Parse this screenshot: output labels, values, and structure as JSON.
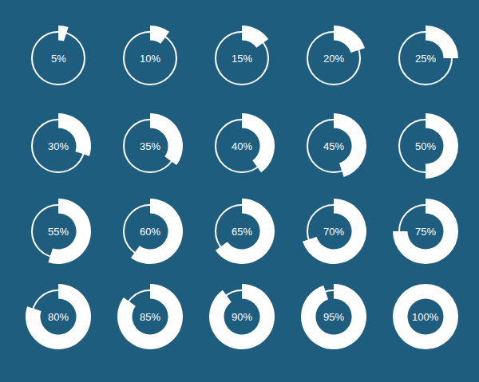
{
  "chart_data": {
    "type": "donut",
    "values": [
      5,
      10,
      15,
      20,
      25,
      30,
      35,
      40,
      45,
      50,
      55,
      60,
      65,
      70,
      75,
      80,
      85,
      90,
      95,
      100
    ],
    "value_labels": [
      "5%",
      "10%",
      "15%",
      "20%",
      "25%",
      "30%",
      "35%",
      "40%",
      "45%",
      "50%",
      "55%",
      "60%",
      "65%",
      "70%",
      "75%",
      "80%",
      "85%",
      "90%",
      "95%",
      "100%"
    ],
    "data_labels": true,
    "color": "#ffffff"
  }
}
